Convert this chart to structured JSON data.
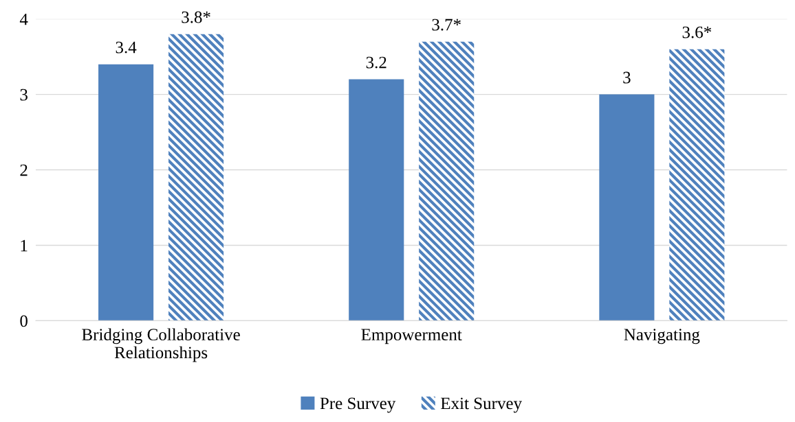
{
  "chart_data": {
    "type": "bar",
    "categories": [
      "Bridging Collaborative Relationships",
      "Empowerment",
      "Navigating"
    ],
    "series": [
      {
        "name": "Pre Survey",
        "color": "#4f81bd",
        "values": [
          3.4,
          3.2,
          3
        ],
        "value_labels": [
          "3.4",
          "3.2",
          "3"
        ]
      },
      {
        "name": "Exit Survey",
        "color": "#4f81bd",
        "values": [
          3.8,
          3.7,
          3.6
        ],
        "value_labels": [
          "3.8*",
          "3.7*",
          "3.6*"
        ]
      }
    ],
    "ylim": [
      0,
      4
    ],
    "yticks": [
      0,
      1,
      2,
      3,
      4
    ],
    "grid": "y",
    "legend": "bottom"
  }
}
